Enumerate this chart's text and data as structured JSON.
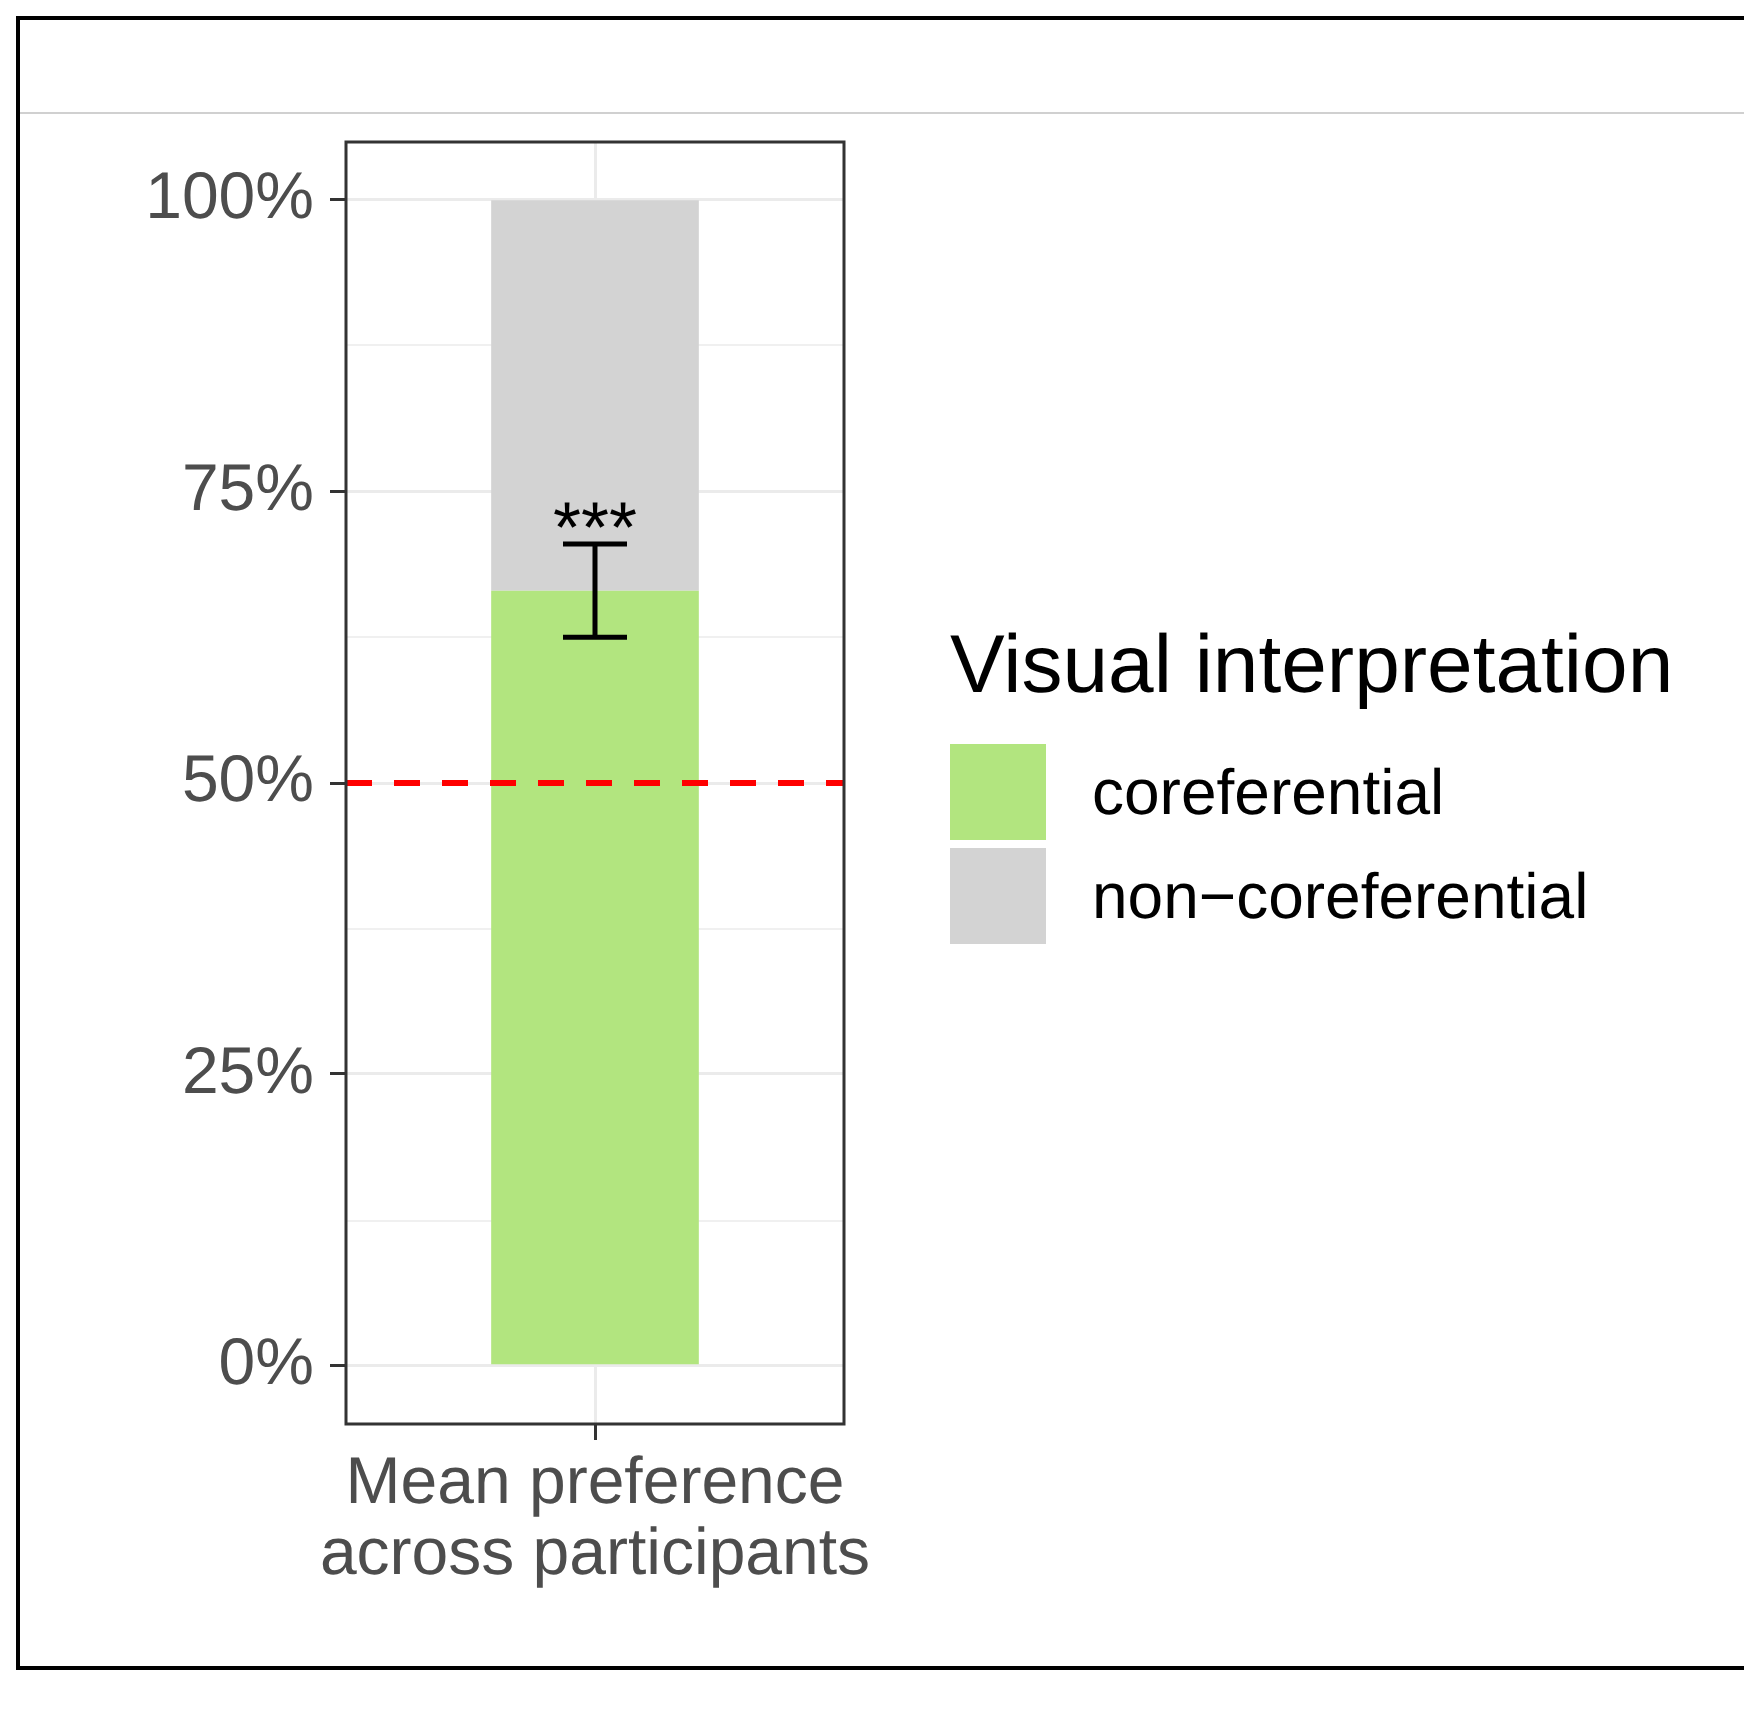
{
  "chart_data": {
    "type": "bar",
    "categories": [
      "Mean preference\nacross participants"
    ],
    "stacked": true,
    "series": [
      {
        "name": "coreferential",
        "color": "#b2e57f",
        "values": [
          66.5
        ],
        "errors": [
          [
            62.5,
            70.5
          ]
        ]
      },
      {
        "name": "non−coreferential",
        "color": "#d3d3d3",
        "values": [
          33.5
        ]
      }
    ],
    "ylim": [
      -5,
      105
    ],
    "yticks": [
      {
        "value": 0,
        "label": "0%"
      },
      {
        "value": 12.5,
        "label": null
      },
      {
        "value": 25,
        "label": "25%"
      },
      {
        "value": 37.5,
        "label": null
      },
      {
        "value": 50,
        "label": "50%"
      },
      {
        "value": 62.5,
        "label": null
      },
      {
        "value": 75,
        "label": "75%"
      },
      {
        "value": 87.5,
        "label": null
      },
      {
        "value": 100,
        "label": "100%"
      }
    ],
    "ref_lines": [
      {
        "axis": "y",
        "value": 50,
        "color": "#ff0000",
        "line_style": "dashed"
      }
    ],
    "annotations": [
      "***"
    ],
    "legend_title": "Visual interpretation",
    "legend": "right",
    "grid": true
  }
}
